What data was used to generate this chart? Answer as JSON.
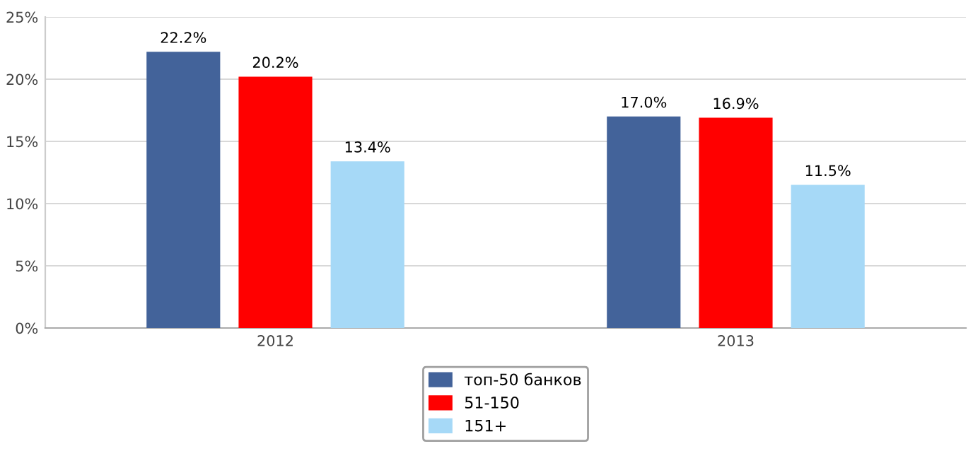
{
  "chart_data": {
    "type": "bar",
    "categories": [
      "2012",
      "2013"
    ],
    "series": [
      {
        "name": "топ-50 банков",
        "color": "#43639a",
        "values": [
          22.2,
          17.0
        ],
        "value_labels": [
          "22.2%",
          "17.0%"
        ]
      },
      {
        "name": "51-150",
        "color": "#ff0000",
        "values": [
          20.2,
          16.9
        ],
        "value_labels": [
          "20.2%",
          "16.9%"
        ]
      },
      {
        "name": "151+",
        "color": "#a6d9f7",
        "values": [
          13.4,
          11.5
        ],
        "value_labels": [
          "13.4%",
          "11.5%"
        ]
      }
    ],
    "ylim": [
      0,
      25
    ],
    "yticks": [
      {
        "value": 0,
        "label": "0%"
      },
      {
        "value": 5,
        "label": "5%"
      },
      {
        "value": 10,
        "label": "10%"
      },
      {
        "value": 15,
        "label": "15%"
      },
      {
        "value": 20,
        "label": "20%"
      },
      {
        "value": 25,
        "label": "25%"
      }
    ],
    "grid": "y",
    "legend": "bottom"
  }
}
